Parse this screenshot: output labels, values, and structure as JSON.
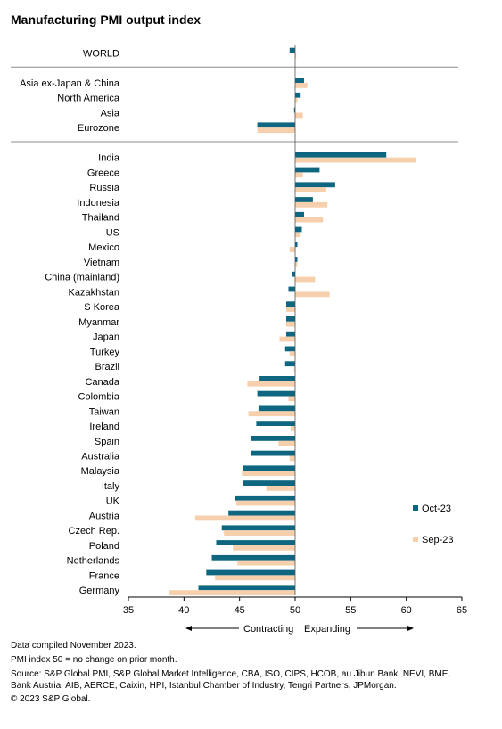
{
  "title": "Manufacturing PMI output index",
  "chart_data": {
    "type": "bar",
    "orientation": "horizontal",
    "title": "Manufacturing PMI output index",
    "xlim": [
      35,
      65
    ],
    "xticks": [
      35,
      40,
      45,
      50,
      55,
      60,
      65
    ],
    "baseline": 50,
    "groups": [
      [
        "WORLD"
      ],
      [
        "Asia ex-Japan & China",
        "North America",
        "Asia",
        "Eurozone"
      ],
      [
        "India",
        "Greece",
        "Russia",
        "Indonesia",
        "Thailand",
        "US",
        "Mexico",
        "Vietnam",
        "China (mainland)",
        "Kazakhstan",
        "S Korea",
        "Myanmar",
        "Japan",
        "Turkey",
        "Brazil",
        "Canada",
        "Colombia",
        "Taiwan",
        "Ireland",
        "Spain",
        "Australia",
        "Malaysia",
        "Italy",
        "UK",
        "Austria",
        "Czech Rep.",
        "Poland",
        "Netherlands",
        "France",
        "Germany"
      ]
    ],
    "categories": [
      "WORLD",
      "Asia ex-Japan & China",
      "North America",
      "Asia",
      "Eurozone",
      "India",
      "Greece",
      "Russia",
      "Indonesia",
      "Thailand",
      "US",
      "Mexico",
      "Vietnam",
      "China (mainland)",
      "Kazakhstan",
      "S Korea",
      "Myanmar",
      "Japan",
      "Turkey",
      "Brazil",
      "Canada",
      "Colombia",
      "Taiwan",
      "Ireland",
      "Spain",
      "Australia",
      "Malaysia",
      "Italy",
      "UK",
      "Austria",
      "Czech Rep.",
      "Poland",
      "Netherlands",
      "France",
      "Germany"
    ],
    "series": [
      {
        "name": "Oct-23",
        "color": "#0e6680",
        "values": [
          49.5,
          50.8,
          50.5,
          49.9,
          46.6,
          58.2,
          52.2,
          53.6,
          51.6,
          50.8,
          50.6,
          50.2,
          50.2,
          49.7,
          49.4,
          49.2,
          49.2,
          49.2,
          49.1,
          49.1,
          46.8,
          46.6,
          46.7,
          46.5,
          46.0,
          46.0,
          45.3,
          45.3,
          44.6,
          44.0,
          43.4,
          42.9,
          42.5,
          42.0,
          41.3
        ]
      },
      {
        "name": "Sep-23",
        "color": "#f6d0ac",
        "values": [
          50.0,
          51.1,
          50.2,
          50.7,
          46.6,
          60.9,
          50.7,
          52.8,
          52.9,
          52.5,
          50.4,
          49.5,
          50.2,
          51.8,
          53.1,
          49.2,
          49.2,
          48.6,
          49.5,
          49.9,
          45.7,
          49.4,
          45.8,
          49.6,
          48.5,
          49.5,
          45.2,
          47.4,
          44.7,
          41.0,
          43.6,
          44.4,
          44.8,
          42.8,
          38.7
        ]
      }
    ],
    "legend": "right",
    "annotations": {
      "left_arrow": "Contracting",
      "right_arrow": "Expanding"
    }
  },
  "footnotes": [
    "Data compiled November 2023.",
    "PMI index 50 = no change on prior month.",
    "Source: S&P Global PMI, S&P Global Market Intelligence, CBA, ISO, CIPS, HCOB, au Jibun Bank, NEVI, BME,",
    "Bank Austria, AIB, AERCE, Caixin, HPI, Istanbul Chamber of Industry, Tengri Partners, JPMorgan.",
    "© 2023 S&P Global."
  ]
}
